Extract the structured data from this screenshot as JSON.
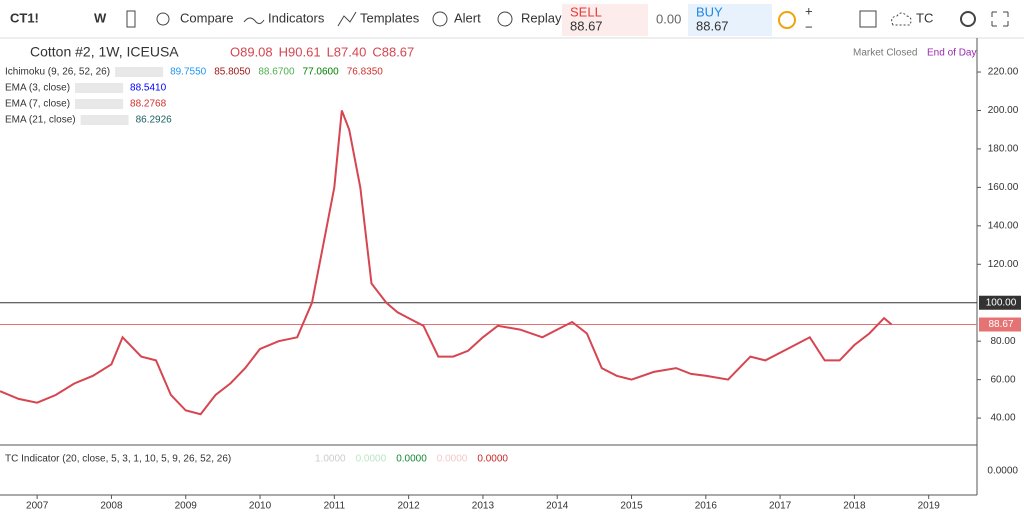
{
  "toolbar": {
    "symbol": "CT1!",
    "interval": "W",
    "compare": "Compare",
    "indicators": "Indicators",
    "templates": "Templates",
    "alert": "Alert",
    "replay": "Replay",
    "sell_label": "SELL",
    "sell_price": "88.67",
    "spread": "0.00",
    "buy_label": "BUY",
    "buy_price": "88.67",
    "plus": "+",
    "minus": "−",
    "account": "TC"
  },
  "legend": {
    "title": "Cotton #2, 1W, ICEUSA",
    "ohlc": [
      "O89.08",
      "H90.61",
      "L87.40",
      "C88.67"
    ],
    "status": "Market Closed",
    "session": "End of Day"
  },
  "studies": [
    {
      "name": "Ichimoku (9, 26, 52, 26)",
      "values": [
        "89.7550",
        "85.8050",
        "88.6700",
        "77.0600",
        "76.8350"
      ],
      "colors": [
        "#2196f3",
        "#991515",
        "#4caf50",
        "#008000",
        "#d32f2f"
      ]
    },
    {
      "name": "EMA (3, close)",
      "values": [
        "88.5410"
      ],
      "colors": [
        "#0000ff"
      ]
    },
    {
      "name": "EMA (7, close)",
      "values": [
        "88.2768"
      ],
      "colors": [
        "#d32f2f"
      ]
    },
    {
      "name": "EMA (21, close)",
      "values": [
        "86.2926"
      ],
      "colors": [
        "#1a5e63"
      ]
    }
  ],
  "indicator": {
    "name": "TC Indicator (20, close, 5, 3, 1, 10, 5, 9, 26, 52, 26)",
    "values": [
      "1.0000",
      "0.0000",
      "0.0000",
      "0.0000",
      "0.0000"
    ],
    "colors": [
      "#ccc",
      "#b9e6c4",
      "#138a36",
      "#f3c9c9",
      "#c62828"
    ],
    "axis_label": "0.0000"
  },
  "chart_data": {
    "type": "line",
    "color": "#d64550",
    "x": [
      2006.5,
      2006.75,
      2007,
      2007.25,
      2007.5,
      2007.75,
      2008,
      2008.15,
      2008.4,
      2008.6,
      2008.8,
      2009,
      2009.2,
      2009.4,
      2009.6,
      2009.8,
      2010,
      2010.25,
      2010.5,
      2010.7,
      2010.85,
      2011,
      2011.1,
      2011.2,
      2011.35,
      2011.5,
      2011.7,
      2011.85,
      2012,
      2012.2,
      2012.4,
      2012.6,
      2012.8,
      2013,
      2013.2,
      2013.5,
      2013.8,
      2014,
      2014.2,
      2014.4,
      2014.6,
      2014.8,
      2015,
      2015.3,
      2015.6,
      2015.8,
      2016,
      2016.3,
      2016.6,
      2016.8,
      2017,
      2017.2,
      2017.4,
      2017.6,
      2017.8,
      2018,
      2018.2,
      2018.4,
      2018.5
    ],
    "values": [
      54,
      50,
      48,
      52,
      58,
      62,
      68,
      82,
      72,
      70,
      52,
      44,
      42,
      52,
      58,
      66,
      76,
      80,
      82,
      100,
      130,
      160,
      200,
      190,
      160,
      110,
      100,
      95,
      92,
      88,
      72,
      72,
      75,
      82,
      88,
      86,
      82,
      86,
      90,
      84,
      66,
      62,
      60,
      64,
      66,
      63,
      62,
      60,
      72,
      70,
      74,
      78,
      82,
      70,
      70,
      78,
      84,
      92,
      88.67
    ],
    "xlim": [
      2006.5,
      2019.65
    ],
    "ylim": [
      26,
      237.7
    ],
    "xticks": [
      2007,
      2008,
      2009,
      2010,
      2011,
      2012,
      2013,
      2014,
      2015,
      2016,
      2017,
      2018,
      2019
    ],
    "yticks": [
      {
        "value": 40,
        "label": "40.00"
      },
      {
        "value": 60,
        "label": "60.00"
      },
      {
        "value": 80,
        "label": "80.00"
      },
      {
        "value": 120,
        "label": "120.00"
      },
      {
        "value": 140,
        "label": "140.00"
      },
      {
        "value": 160,
        "label": "160.00"
      },
      {
        "value": 180,
        "label": "180.00"
      },
      {
        "value": 200,
        "label": "200.00"
      },
      {
        "value": 220,
        "label": "220.00"
      }
    ],
    "price_lines": [
      {
        "value": 100,
        "label": "100.00",
        "color": "#333333"
      },
      {
        "value": 88.67,
        "label": "88.67",
        "color": "#e57373"
      }
    ]
  }
}
